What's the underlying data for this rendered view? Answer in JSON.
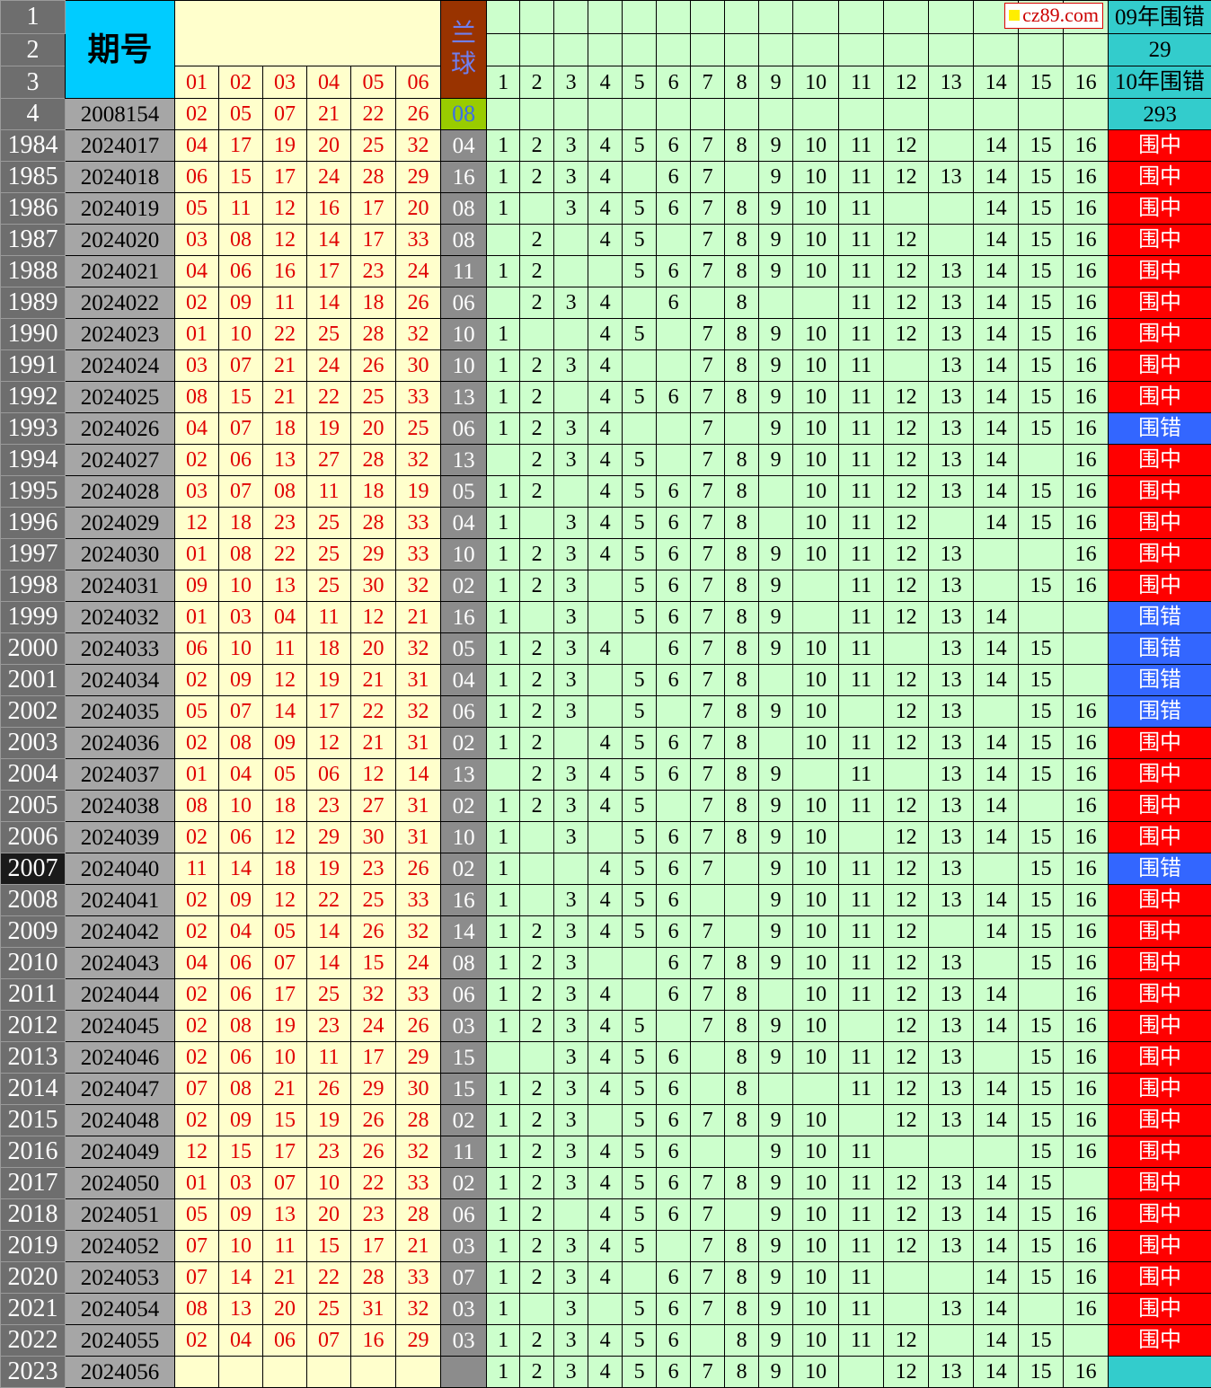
{
  "header": {
    "row_numbers": [
      "1",
      "2",
      "3",
      "4"
    ],
    "period_label": "期号",
    "red_labels": [
      "01",
      "02",
      "03",
      "04",
      "05",
      "06"
    ],
    "blue_label": "兰球",
    "green_labels": [
      "1",
      "2",
      "3",
      "4",
      "5",
      "6",
      "7",
      "8",
      "9",
      "10",
      "11",
      "12",
      "13",
      "14",
      "15",
      "16"
    ],
    "stat_09_label": "09年围错",
    "stat_09_value": "29",
    "stat_10_label": "10年围错",
    "stat_10_value": "293",
    "reference": {
      "period": "2008154",
      "reds": [
        "02",
        "05",
        "07",
        "21",
        "22",
        "26"
      ],
      "blue": "08"
    }
  },
  "watermark": "cz89.com",
  "colors": {
    "hit": "#ff0000",
    "miss": "#3366ff",
    "header_blue": "#00ccff",
    "teal": "#33cccc",
    "green": "#ccffcc",
    "yellow": "#ffffcc",
    "red_text": "#e00000"
  },
  "selected_row": "2007",
  "rows": [
    {
      "n": "1984",
      "p": "2024017",
      "r": [
        "04",
        "17",
        "19",
        "20",
        "25",
        "32"
      ],
      "b": "04",
      "g": [
        1,
        2,
        3,
        4,
        5,
        6,
        7,
        8,
        9,
        10,
        11,
        12,
        14,
        15,
        16
      ],
      "s": "围中"
    },
    {
      "n": "1985",
      "p": "2024018",
      "r": [
        "06",
        "15",
        "17",
        "24",
        "28",
        "29"
      ],
      "b": "16",
      "g": [
        1,
        2,
        3,
        4,
        6,
        7,
        9,
        10,
        11,
        12,
        13,
        14,
        15,
        16
      ],
      "s": "围中"
    },
    {
      "n": "1986",
      "p": "2024019",
      "r": [
        "05",
        "11",
        "12",
        "16",
        "17",
        "20"
      ],
      "b": "08",
      "g": [
        1,
        3,
        4,
        5,
        6,
        7,
        8,
        9,
        10,
        11,
        14,
        15,
        16
      ],
      "s": "围中"
    },
    {
      "n": "1987",
      "p": "2024020",
      "r": [
        "03",
        "08",
        "12",
        "14",
        "17",
        "33"
      ],
      "b": "08",
      "g": [
        2,
        4,
        5,
        7,
        8,
        9,
        10,
        11,
        12,
        14,
        15,
        16
      ],
      "s": "围中"
    },
    {
      "n": "1988",
      "p": "2024021",
      "r": [
        "04",
        "06",
        "16",
        "17",
        "23",
        "24"
      ],
      "b": "11",
      "g": [
        1,
        2,
        5,
        6,
        7,
        8,
        9,
        10,
        11,
        12,
        13,
        14,
        15,
        16
      ],
      "s": "围中"
    },
    {
      "n": "1989",
      "p": "2024022",
      "r": [
        "02",
        "09",
        "11",
        "14",
        "18",
        "26"
      ],
      "b": "06",
      "g": [
        2,
        3,
        4,
        6,
        8,
        11,
        12,
        13,
        14,
        15,
        16
      ],
      "s": "围中"
    },
    {
      "n": "1990",
      "p": "2024023",
      "r": [
        "01",
        "10",
        "22",
        "25",
        "28",
        "32"
      ],
      "b": "10",
      "g": [
        1,
        4,
        5,
        7,
        8,
        9,
        10,
        11,
        12,
        13,
        14,
        15,
        16
      ],
      "s": "围中"
    },
    {
      "n": "1991",
      "p": "2024024",
      "r": [
        "03",
        "07",
        "21",
        "24",
        "26",
        "30"
      ],
      "b": "10",
      "g": [
        1,
        2,
        3,
        4,
        7,
        8,
        9,
        10,
        11,
        13,
        14,
        15,
        16
      ],
      "s": "围中"
    },
    {
      "n": "1992",
      "p": "2024025",
      "r": [
        "08",
        "15",
        "21",
        "22",
        "25",
        "33"
      ],
      "b": "13",
      "g": [
        1,
        2,
        4,
        5,
        6,
        7,
        8,
        9,
        10,
        11,
        12,
        13,
        14,
        15,
        16
      ],
      "s": "围中"
    },
    {
      "n": "1993",
      "p": "2024026",
      "r": [
        "04",
        "07",
        "18",
        "19",
        "20",
        "25"
      ],
      "b": "06",
      "g": [
        1,
        2,
        3,
        4,
        7,
        9,
        10,
        11,
        12,
        13,
        14,
        15,
        16
      ],
      "s": "围错"
    },
    {
      "n": "1994",
      "p": "2024027",
      "r": [
        "02",
        "06",
        "13",
        "27",
        "28",
        "32"
      ],
      "b": "13",
      "g": [
        2,
        3,
        4,
        5,
        7,
        8,
        9,
        10,
        11,
        12,
        13,
        14,
        16
      ],
      "s": "围中"
    },
    {
      "n": "1995",
      "p": "2024028",
      "r": [
        "03",
        "07",
        "08",
        "11",
        "18",
        "19"
      ],
      "b": "05",
      "g": [
        1,
        2,
        4,
        5,
        6,
        7,
        8,
        10,
        11,
        12,
        13,
        14,
        15,
        16
      ],
      "s": "围中"
    },
    {
      "n": "1996",
      "p": "2024029",
      "r": [
        "12",
        "18",
        "23",
        "25",
        "28",
        "33"
      ],
      "b": "04",
      "g": [
        1,
        3,
        4,
        5,
        6,
        7,
        8,
        10,
        11,
        12,
        14,
        15,
        16
      ],
      "s": "围中"
    },
    {
      "n": "1997",
      "p": "2024030",
      "r": [
        "01",
        "08",
        "22",
        "25",
        "29",
        "33"
      ],
      "b": "10",
      "g": [
        1,
        2,
        3,
        4,
        5,
        6,
        7,
        8,
        9,
        10,
        11,
        12,
        13,
        16
      ],
      "s": "围中"
    },
    {
      "n": "1998",
      "p": "2024031",
      "r": [
        "09",
        "10",
        "13",
        "25",
        "30",
        "32"
      ],
      "b": "02",
      "g": [
        1,
        2,
        3,
        5,
        6,
        7,
        8,
        9,
        11,
        12,
        13,
        15,
        16
      ],
      "s": "围中"
    },
    {
      "n": "1999",
      "p": "2024032",
      "r": [
        "01",
        "03",
        "04",
        "11",
        "12",
        "21"
      ],
      "b": "16",
      "g": [
        1,
        3,
        5,
        6,
        7,
        8,
        9,
        11,
        12,
        13,
        14
      ],
      "s": "围错"
    },
    {
      "n": "2000",
      "p": "2024033",
      "r": [
        "06",
        "10",
        "11",
        "18",
        "20",
        "32"
      ],
      "b": "05",
      "g": [
        1,
        2,
        3,
        4,
        6,
        7,
        8,
        9,
        10,
        11,
        13,
        14,
        15
      ],
      "s": "围错"
    },
    {
      "n": "2001",
      "p": "2024034",
      "r": [
        "02",
        "09",
        "12",
        "19",
        "21",
        "31"
      ],
      "b": "04",
      "g": [
        1,
        2,
        3,
        5,
        6,
        7,
        8,
        10,
        11,
        12,
        13,
        14,
        15
      ],
      "s": "围错"
    },
    {
      "n": "2002",
      "p": "2024035",
      "r": [
        "05",
        "07",
        "14",
        "17",
        "22",
        "32"
      ],
      "b": "06",
      "g": [
        1,
        2,
        3,
        5,
        7,
        8,
        9,
        10,
        12,
        13,
        15,
        16
      ],
      "s": "围错"
    },
    {
      "n": "2003",
      "p": "2024036",
      "r": [
        "02",
        "08",
        "09",
        "12",
        "21",
        "31"
      ],
      "b": "02",
      "g": [
        1,
        2,
        4,
        5,
        6,
        7,
        8,
        10,
        11,
        12,
        13,
        14,
        15,
        16
      ],
      "s": "围中"
    },
    {
      "n": "2004",
      "p": "2024037",
      "r": [
        "01",
        "04",
        "05",
        "06",
        "12",
        "14"
      ],
      "b": "13",
      "g": [
        2,
        3,
        4,
        5,
        6,
        7,
        8,
        9,
        11,
        13,
        14,
        15,
        16
      ],
      "s": "围中"
    },
    {
      "n": "2005",
      "p": "2024038",
      "r": [
        "08",
        "10",
        "18",
        "23",
        "27",
        "31"
      ],
      "b": "02",
      "g": [
        1,
        2,
        3,
        4,
        5,
        7,
        8,
        9,
        10,
        11,
        12,
        13,
        14,
        16
      ],
      "s": "围中"
    },
    {
      "n": "2006",
      "p": "2024039",
      "r": [
        "02",
        "06",
        "12",
        "29",
        "30",
        "31"
      ],
      "b": "10",
      "g": [
        1,
        3,
        5,
        6,
        7,
        8,
        9,
        10,
        12,
        13,
        14,
        15,
        16
      ],
      "s": "围中"
    },
    {
      "n": "2007",
      "p": "2024040",
      "r": [
        "11",
        "14",
        "18",
        "19",
        "23",
        "26"
      ],
      "b": "02",
      "g": [
        1,
        4,
        5,
        6,
        7,
        9,
        10,
        11,
        12,
        13,
        15,
        16
      ],
      "s": "围错"
    },
    {
      "n": "2008",
      "p": "2024041",
      "r": [
        "02",
        "09",
        "12",
        "22",
        "25",
        "33"
      ],
      "b": "16",
      "g": [
        1,
        3,
        4,
        5,
        6,
        9,
        10,
        11,
        12,
        13,
        14,
        15,
        16
      ],
      "s": "围中"
    },
    {
      "n": "2009",
      "p": "2024042",
      "r": [
        "02",
        "04",
        "05",
        "14",
        "26",
        "32"
      ],
      "b": "14",
      "g": [
        1,
        2,
        3,
        4,
        5,
        6,
        7,
        9,
        10,
        11,
        12,
        14,
        15,
        16
      ],
      "s": "围中"
    },
    {
      "n": "2010",
      "p": "2024043",
      "r": [
        "04",
        "06",
        "07",
        "14",
        "15",
        "24"
      ],
      "b": "08",
      "g": [
        1,
        2,
        3,
        6,
        7,
        8,
        9,
        10,
        11,
        12,
        13,
        15,
        16
      ],
      "s": "围中"
    },
    {
      "n": "2011",
      "p": "2024044",
      "r": [
        "02",
        "06",
        "17",
        "25",
        "32",
        "33"
      ],
      "b": "06",
      "g": [
        1,
        2,
        3,
        4,
        6,
        7,
        8,
        10,
        11,
        12,
        13,
        14,
        16
      ],
      "s": "围中"
    },
    {
      "n": "2012",
      "p": "2024045",
      "r": [
        "02",
        "08",
        "19",
        "23",
        "24",
        "26"
      ],
      "b": "03",
      "g": [
        1,
        2,
        3,
        4,
        5,
        7,
        8,
        9,
        10,
        12,
        13,
        14,
        15,
        16
      ],
      "s": "围中"
    },
    {
      "n": "2013",
      "p": "2024046",
      "r": [
        "02",
        "06",
        "10",
        "11",
        "17",
        "29"
      ],
      "b": "15",
      "g": [
        3,
        4,
        5,
        6,
        8,
        9,
        10,
        11,
        12,
        13,
        15,
        16
      ],
      "s": "围中"
    },
    {
      "n": "2014",
      "p": "2024047",
      "r": [
        "07",
        "08",
        "21",
        "26",
        "29",
        "30"
      ],
      "b": "15",
      "g": [
        1,
        2,
        3,
        4,
        5,
        6,
        8,
        11,
        12,
        13,
        14,
        15,
        16
      ],
      "s": "围中"
    },
    {
      "n": "2015",
      "p": "2024048",
      "r": [
        "02",
        "09",
        "15",
        "19",
        "26",
        "28"
      ],
      "b": "02",
      "g": [
        1,
        2,
        3,
        5,
        6,
        7,
        8,
        9,
        10,
        12,
        13,
        14,
        15,
        16
      ],
      "s": "围中"
    },
    {
      "n": "2016",
      "p": "2024049",
      "r": [
        "12",
        "15",
        "17",
        "23",
        "26",
        "32"
      ],
      "b": "11",
      "g": [
        1,
        2,
        3,
        4,
        5,
        6,
        9,
        10,
        11,
        15,
        16
      ],
      "s": "围中"
    },
    {
      "n": "2017",
      "p": "2024050",
      "r": [
        "01",
        "03",
        "07",
        "10",
        "22",
        "33"
      ],
      "b": "02",
      "g": [
        1,
        2,
        3,
        4,
        5,
        6,
        7,
        8,
        9,
        10,
        11,
        12,
        13,
        14,
        15
      ],
      "s": "围中"
    },
    {
      "n": "2018",
      "p": "2024051",
      "r": [
        "05",
        "09",
        "13",
        "20",
        "23",
        "28"
      ],
      "b": "06",
      "g": [
        1,
        2,
        4,
        5,
        6,
        7,
        9,
        10,
        11,
        12,
        13,
        14,
        15,
        16
      ],
      "s": "围中"
    },
    {
      "n": "2019",
      "p": "2024052",
      "r": [
        "07",
        "10",
        "11",
        "15",
        "17",
        "21"
      ],
      "b": "03",
      "g": [
        1,
        2,
        3,
        4,
        5,
        7,
        8,
        9,
        10,
        11,
        12,
        13,
        14,
        15,
        16
      ],
      "s": "围中"
    },
    {
      "n": "2020",
      "p": "2024053",
      "r": [
        "07",
        "14",
        "21",
        "22",
        "28",
        "33"
      ],
      "b": "07",
      "g": [
        1,
        2,
        3,
        4,
        6,
        7,
        8,
        9,
        10,
        11,
        14,
        15,
        16
      ],
      "s": "围中"
    },
    {
      "n": "2021",
      "p": "2024054",
      "r": [
        "08",
        "13",
        "20",
        "25",
        "31",
        "32"
      ],
      "b": "03",
      "g": [
        1,
        3,
        5,
        6,
        7,
        8,
        9,
        10,
        11,
        13,
        14,
        16
      ],
      "s": "围中"
    },
    {
      "n": "2022",
      "p": "2024055",
      "r": [
        "02",
        "04",
        "06",
        "07",
        "16",
        "29"
      ],
      "b": "03",
      "g": [
        1,
        2,
        3,
        4,
        5,
        6,
        8,
        9,
        10,
        11,
        12,
        14,
        15
      ],
      "s": "围中"
    },
    {
      "n": "2023",
      "p": "2024056",
      "r": [
        "",
        "",
        "",
        "",
        "",
        ""
      ],
      "b": "",
      "g": [
        1,
        2,
        3,
        4,
        5,
        6,
        7,
        8,
        9,
        10,
        12,
        13,
        14,
        15,
        16
      ],
      "s": ""
    }
  ]
}
